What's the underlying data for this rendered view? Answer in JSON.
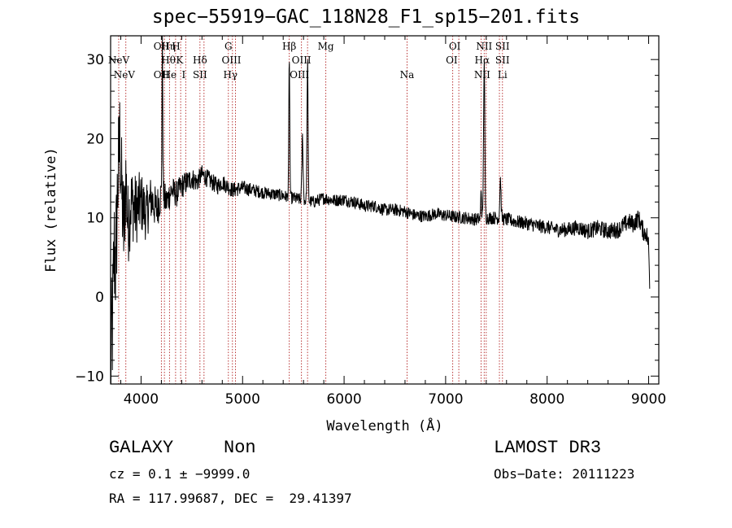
{
  "title": "spec−55919−GAC_118N28_F1_sp15−201.fits",
  "info": {
    "class": "GALAXY",
    "subclass": "Non",
    "survey": "LAMOST DR3",
    "cz": "cz = 0.1 ± −9999.0",
    "obs_date": "Obs−Date: 20111223",
    "radec": "RA = 117.99687, DEC =  29.41397"
  },
  "chart_data": {
    "type": "line",
    "title": "spec−55919−GAC_118N28_F1_sp15−201.fits",
    "xlabel": "Wavelength (Å)",
    "ylabel": "Flux (relative)",
    "xlim": [
      3700,
      9100
    ],
    "ylim": [
      -11,
      33
    ],
    "xticks": [
      4000,
      5000,
      6000,
      7000,
      8000,
      9000
    ],
    "xtick_labels": [
      "4000",
      "5000",
      "6000",
      "7000",
      "8000",
      "9000"
    ],
    "yticks": [
      -10,
      0,
      10,
      20,
      30
    ],
    "ytick_labels": [
      "−10",
      "0",
      "10",
      "20",
      "30"
    ],
    "series": [
      {
        "name": "flux",
        "anchors": [
          [
            3700,
            -9
          ],
          [
            3720,
            -3
          ],
          [
            3735,
            6
          ],
          [
            3750,
            4
          ],
          [
            3770,
            14
          ],
          [
            3790,
            20
          ],
          [
            3810,
            13
          ],
          [
            3830,
            8
          ],
          [
            3850,
            15
          ],
          [
            3870,
            9
          ],
          [
            3900,
            12
          ],
          [
            3950,
            11
          ],
          [
            4000,
            12
          ],
          [
            4050,
            10.5
          ],
          [
            4100,
            12.5
          ],
          [
            4150,
            11
          ],
          [
            4200,
            13
          ],
          [
            4250,
            12
          ],
          [
            4300,
            13.5
          ],
          [
            4350,
            13
          ],
          [
            4400,
            14
          ],
          [
            4450,
            14.5
          ],
          [
            4500,
            15
          ],
          [
            4550,
            14.5
          ],
          [
            4600,
            15.5
          ],
          [
            4650,
            15
          ],
          [
            4700,
            14.5
          ],
          [
            4750,
            14
          ],
          [
            4800,
            14.5
          ],
          [
            4850,
            14
          ],
          [
            4900,
            13.5
          ],
          [
            5000,
            13.8
          ],
          [
            5100,
            13.5
          ],
          [
            5200,
            13.2
          ],
          [
            5300,
            13
          ],
          [
            5400,
            12.8
          ],
          [
            5460,
            12.5
          ],
          [
            5500,
            12.5
          ],
          [
            5600,
            12.2
          ],
          [
            5700,
            12
          ],
          [
            5800,
            12.5
          ],
          [
            5900,
            12.2
          ],
          [
            6000,
            12.3
          ],
          [
            6100,
            12
          ],
          [
            6200,
            11.5
          ],
          [
            6300,
            11.5
          ],
          [
            6400,
            11
          ],
          [
            6500,
            11
          ],
          [
            6600,
            10.8
          ],
          [
            6700,
            10.3
          ],
          [
            6800,
            10.2
          ],
          [
            6900,
            10.5
          ],
          [
            7000,
            10.3
          ],
          [
            7100,
            10.1
          ],
          [
            7200,
            10
          ],
          [
            7300,
            9.8
          ],
          [
            7400,
            10
          ],
          [
            7500,
            10
          ],
          [
            7600,
            9.8
          ],
          [
            7700,
            9.5
          ],
          [
            7800,
            9.3
          ],
          [
            7900,
            9
          ],
          [
            8000,
            8.8
          ],
          [
            8100,
            8.5
          ],
          [
            8200,
            8.5
          ],
          [
            8300,
            8.8
          ],
          [
            8400,
            8.3
          ],
          [
            8500,
            8.7
          ],
          [
            8600,
            8.3
          ],
          [
            8700,
            8.5
          ],
          [
            8800,
            9.5
          ],
          [
            8850,
            9.2
          ],
          [
            8900,
            10
          ],
          [
            8950,
            8.2
          ],
          [
            8980,
            8
          ],
          [
            9000,
            6.5
          ],
          [
            9010,
            1.5
          ]
        ],
        "noise": [
          [
            3700,
            9
          ],
          [
            3900,
            5
          ],
          [
            4100,
            3
          ],
          [
            4300,
            1.8
          ],
          [
            4600,
            1.2
          ],
          [
            5200,
            0.8
          ],
          [
            6000,
            0.8
          ],
          [
            7000,
            0.8
          ],
          [
            8000,
            0.9
          ],
          [
            8700,
            1.1
          ],
          [
            9010,
            1.2
          ]
        ],
        "emission_lines": [
          {
            "center": 4210,
            "height": 20,
            "width": 4
          },
          {
            "center": 5460,
            "height": 17,
            "width": 5
          },
          {
            "center": 5590,
            "height": 8,
            "width": 6
          },
          {
            "center": 5640,
            "height": 18,
            "width": 5
          },
          {
            "center": 7350,
            "height": 4,
            "width": 4
          },
          {
            "center": 7380,
            "height": 20,
            "width": 6
          },
          {
            "center": 7540,
            "height": 5,
            "width": 6
          }
        ]
      }
    ],
    "line_markers": [
      {
        "wave": 3780,
        "label": "NeV",
        "row": "top2"
      },
      {
        "wave": 3835,
        "label": "NeV",
        "row": "top3"
      },
      {
        "wave": 4200,
        "label": "OII",
        "row": "top1"
      },
      {
        "wave": 4200,
        "label": "OII",
        "row": "top3"
      },
      {
        "wave": 4270,
        "label": "Hη",
        "row": "top1"
      },
      {
        "wave": 4270,
        "label": "Hθ",
        "row": "top2"
      },
      {
        "wave": 4280,
        "label": "He",
        "row": "top3"
      },
      {
        "wave": 4345,
        "label": "H",
        "row": "top1"
      },
      {
        "wave": 4380,
        "label": "K",
        "row": "top2"
      },
      {
        "wave": 4420,
        "label": "I",
        "row": "top3"
      },
      {
        "wave": 4580,
        "label": "Hδ",
        "row": "top2"
      },
      {
        "wave": 4580,
        "label": "SII",
        "row": "top3"
      },
      {
        "wave": 4860,
        "label": "G",
        "row": "top1"
      },
      {
        "wave": 4890,
        "label": "OIII",
        "row": "top2"
      },
      {
        "wave": 4880,
        "label": "Hγ",
        "row": "top3"
      },
      {
        "wave": 5460,
        "label": "Hβ",
        "row": "top1"
      },
      {
        "wave": 5580,
        "label": "OIII",
        "row": "top2"
      },
      {
        "wave": 5560,
        "label": "OIII",
        "row": "top3"
      },
      {
        "wave": 5820,
        "label": "Mg",
        "row": "top1"
      },
      {
        "wave": 6620,
        "label": "Na",
        "row": "top3"
      },
      {
        "wave": 7090,
        "label": "OI",
        "row": "top1"
      },
      {
        "wave": 7060,
        "label": "OI",
        "row": "top2"
      },
      {
        "wave": 7380,
        "label": "NII",
        "row": "top1"
      },
      {
        "wave": 7360,
        "label": "Hα",
        "row": "top2"
      },
      {
        "wave": 7360,
        "label": "NII",
        "row": "top3"
      },
      {
        "wave": 7560,
        "label": "SII",
        "row": "top1"
      },
      {
        "wave": 7560,
        "label": "SII",
        "row": "top2"
      },
      {
        "wave": 7560,
        "label": "Li",
        "row": "top3"
      }
    ],
    "marker_lines": [
      3780,
      3850,
      4200,
      4230,
      4280,
      4340,
      4390,
      4440,
      4580,
      4620,
      4860,
      4900,
      4930,
      5460,
      5580,
      5640,
      5820,
      6620,
      7070,
      7130,
      7350,
      7380,
      7400,
      7530,
      7560
    ]
  }
}
